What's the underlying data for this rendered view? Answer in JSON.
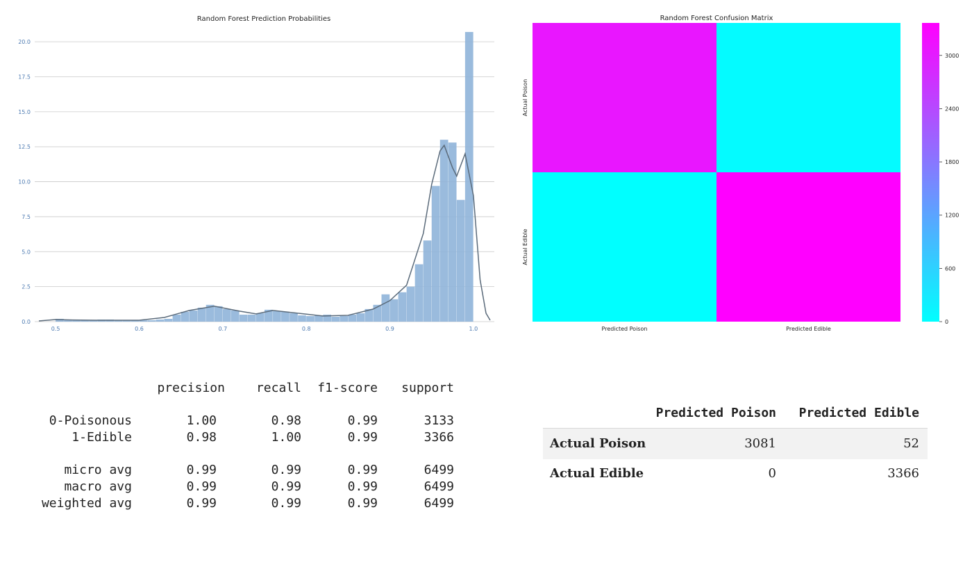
{
  "chart_data": [
    {
      "type": "bar",
      "title": "Random Forest Prediction Probabilities",
      "xlabel": "",
      "ylabel": "",
      "xlim": [
        0.475,
        1.025
      ],
      "ylim": [
        0,
        21
      ],
      "grid": true,
      "xticks": [
        "0.5",
        "0.6",
        "0.7",
        "0.8",
        "0.9",
        "1.0"
      ],
      "yticks": [
        "0.0",
        "2.5",
        "5.0",
        "7.5",
        "10.0",
        "12.5",
        "15.0",
        "17.5",
        "20.0"
      ],
      "bin_width": 0.01,
      "bin_starts": [
        0.5,
        0.51,
        0.52,
        0.53,
        0.54,
        0.55,
        0.56,
        0.57,
        0.58,
        0.59,
        0.6,
        0.61,
        0.62,
        0.63,
        0.64,
        0.65,
        0.66,
        0.67,
        0.68,
        0.69,
        0.7,
        0.71,
        0.72,
        0.73,
        0.74,
        0.75,
        0.76,
        0.77,
        0.78,
        0.79,
        0.8,
        0.81,
        0.82,
        0.83,
        0.84,
        0.85,
        0.86,
        0.87,
        0.88,
        0.89,
        0.9,
        0.91,
        0.92,
        0.93,
        0.94,
        0.95,
        0.96,
        0.97,
        0.98,
        0.99
      ],
      "values": [
        0.2,
        0.15,
        0.1,
        0.1,
        0.1,
        0.15,
        0.15,
        0.1,
        0.1,
        0.1,
        0.1,
        0.1,
        0.15,
        0.2,
        0.5,
        0.7,
        0.8,
        1.0,
        1.2,
        1.1,
        0.9,
        0.8,
        0.5,
        0.5,
        0.6,
        0.85,
        0.75,
        0.7,
        0.6,
        0.45,
        0.4,
        0.45,
        0.5,
        0.35,
        0.4,
        0.5,
        0.6,
        0.9,
        1.2,
        1.95,
        1.6,
        2.1,
        2.5,
        4.1,
        5.8,
        9.7,
        13.0,
        12.8,
        8.7,
        20.7
      ],
      "kde": [
        [
          0.48,
          0.05
        ],
        [
          0.5,
          0.15
        ],
        [
          0.52,
          0.12
        ],
        [
          0.55,
          0.1
        ],
        [
          0.6,
          0.1
        ],
        [
          0.63,
          0.3
        ],
        [
          0.66,
          0.8
        ],
        [
          0.69,
          1.1
        ],
        [
          0.72,
          0.75
        ],
        [
          0.74,
          0.55
        ],
        [
          0.76,
          0.8
        ],
        [
          0.79,
          0.6
        ],
        [
          0.82,
          0.4
        ],
        [
          0.85,
          0.45
        ],
        [
          0.88,
          0.9
        ],
        [
          0.9,
          1.5
        ],
        [
          0.92,
          2.6
        ],
        [
          0.94,
          6.3
        ],
        [
          0.95,
          9.8
        ],
        [
          0.96,
          12.2
        ],
        [
          0.965,
          12.6
        ],
        [
          0.975,
          11.0
        ],
        [
          0.98,
          10.4
        ],
        [
          0.99,
          12.0
        ],
        [
          1.0,
          9.0
        ],
        [
          1.008,
          3.0
        ],
        [
          1.015,
          0.6
        ],
        [
          1.02,
          0.1
        ]
      ],
      "bar_color": "#8fb4d9",
      "kde_color": "#5a6a7a"
    },
    {
      "type": "heatmap",
      "title": "Random Forest Confusion Matrix",
      "x_labels": [
        "Predicted Poison",
        "Predicted Edible"
      ],
      "y_labels": [
        "Actual Poison",
        "Actual Edible"
      ],
      "values": [
        [
          3081,
          52
        ],
        [
          0,
          3366
        ]
      ],
      "colorbar_ticks": [
        "0",
        "600",
        "1200",
        "1800",
        "2400",
        "3000"
      ],
      "colorbar_range": [
        0,
        3366
      ],
      "colormap": "cool",
      "colors": {
        "low": "#00ffff",
        "high": "#ff00ff"
      }
    }
  ],
  "report": {
    "headers": [
      "precision",
      "recall",
      "f1-score",
      "support"
    ],
    "rows": [
      {
        "label": "0-Poisonous",
        "values": [
          "1.00",
          "0.98",
          "0.99",
          "3133"
        ]
      },
      {
        "label": "1-Edible",
        "values": [
          "0.98",
          "1.00",
          "0.99",
          "3366"
        ]
      },
      {
        "label": "micro avg",
        "values": [
          "0.99",
          "0.99",
          "0.99",
          "6499"
        ]
      },
      {
        "label": "macro avg",
        "values": [
          "0.99",
          "0.99",
          "0.99",
          "6499"
        ]
      },
      {
        "label": "weighted avg",
        "values": [
          "0.99",
          "0.99",
          "0.99",
          "6499"
        ]
      }
    ]
  },
  "cm_table": {
    "headers": [
      "Predicted Poison",
      "Predicted Edible"
    ],
    "rows": [
      {
        "label": "Actual Poison",
        "values": [
          "3081",
          "52"
        ]
      },
      {
        "label": "Actual Edible",
        "values": [
          "0",
          "3366"
        ]
      }
    ]
  }
}
